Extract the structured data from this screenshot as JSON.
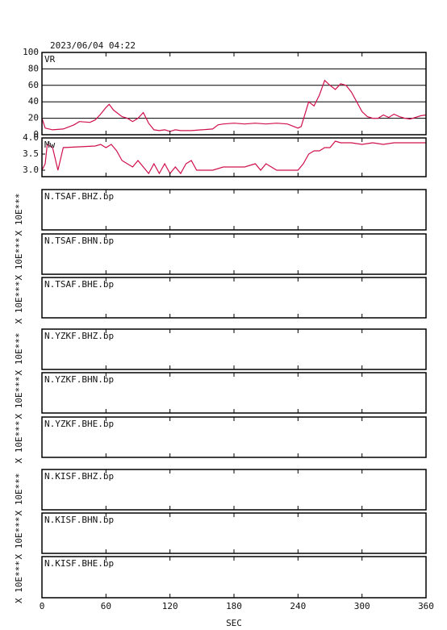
{
  "title": "2023/06/04 04:22",
  "x_axis": {
    "label": "SEC",
    "xlim": [
      0,
      360
    ],
    "xticks": [
      0,
      60,
      120,
      180,
      240,
      300,
      360
    ]
  },
  "chart_data": [
    {
      "type": "line",
      "title": "VR",
      "color": "#d0104c",
      "grid": true,
      "ylim": [
        0,
        100
      ],
      "yticks": [
        0,
        20,
        40,
        60,
        80,
        100
      ],
      "x": [
        0,
        3,
        10,
        20,
        30,
        35,
        45,
        50,
        55,
        60,
        63,
        67,
        75,
        80,
        85,
        90,
        95,
        100,
        105,
        110,
        115,
        120,
        125,
        130,
        140,
        150,
        160,
        165,
        170,
        180,
        190,
        200,
        210,
        220,
        230,
        240,
        243,
        250,
        255,
        260,
        265,
        270,
        275,
        280,
        285,
        290,
        295,
        300,
        305,
        310,
        315,
        320,
        325,
        330,
        335,
        340,
        345,
        350,
        355,
        360
      ],
      "values": [
        20,
        8,
        6,
        7,
        12,
        16,
        15,
        18,
        25,
        33,
        37,
        30,
        22,
        20,
        16,
        20,
        27,
        14,
        6,
        5,
        6,
        4,
        6,
        5,
        5,
        6,
        7,
        12,
        13,
        14,
        13,
        14,
        13,
        14,
        13,
        8,
        10,
        40,
        35,
        48,
        66,
        60,
        55,
        62,
        60,
        52,
        40,
        28,
        22,
        20,
        20,
        24,
        21,
        25,
        22,
        20,
        19,
        21,
        23,
        24
      ]
    },
    {
      "type": "line",
      "title": "Mw",
      "color": "#d0104c",
      "grid": false,
      "ylim": [
        2.8,
        4.0
      ],
      "yticks": [
        {
          "value": 3,
          "label": "3.0"
        },
        3.5,
        {
          "value": 4,
          "label": "4.0"
        }
      ],
      "x": [
        0,
        3,
        5,
        10,
        15,
        20,
        50,
        55,
        60,
        65,
        70,
        75,
        80,
        85,
        90,
        95,
        100,
        105,
        110,
        115,
        120,
        125,
        130,
        135,
        140,
        145,
        150,
        160,
        170,
        180,
        190,
        200,
        205,
        210,
        220,
        230,
        240,
        245,
        250,
        255,
        260,
        265,
        270,
        275,
        280,
        290,
        300,
        310,
        320,
        330,
        340,
        350,
        360
      ],
      "values": [
        3.0,
        3.2,
        3.8,
        3.7,
        3.0,
        3.7,
        3.75,
        3.8,
        3.7,
        3.8,
        3.6,
        3.3,
        3.2,
        3.1,
        3.3,
        3.1,
        2.9,
        3.2,
        2.9,
        3.2,
        2.9,
        3.1,
        2.9,
        3.2,
        3.3,
        3.0,
        3.0,
        3.0,
        3.1,
        3.1,
        3.1,
        3.2,
        3.0,
        3.2,
        3.0,
        3.0,
        3.0,
        3.2,
        3.5,
        3.6,
        3.6,
        3.7,
        3.7,
        3.9,
        3.85,
        3.85,
        3.8,
        3.85,
        3.8,
        3.85,
        3.85,
        3.85,
        3.85
      ]
    }
  ],
  "traces": [
    {
      "label": "N.TSAF.BHZ.bp",
      "unit": "X 10E***"
    },
    {
      "label": "N.TSAF.BHN.bp",
      "unit": "X 10E***"
    },
    {
      "label": "N.TSAF.BHE.bp",
      "unit": "X 10E***"
    },
    {
      "label": "N.YZKF.BHZ.bp",
      "unit": "X 10E***"
    },
    {
      "label": "N.YZKF.BHN.bp",
      "unit": "X 10E***"
    },
    {
      "label": "N.YZKF.BHE.bp",
      "unit": "X 10E***"
    },
    {
      "label": "N.KISF.BHZ.bp",
      "unit": "X 10E***"
    },
    {
      "label": "N.KISF.BHN.bp",
      "unit": "X 10E***"
    },
    {
      "label": "N.KISF.BHE.bp",
      "unit": "X 10E***"
    }
  ]
}
